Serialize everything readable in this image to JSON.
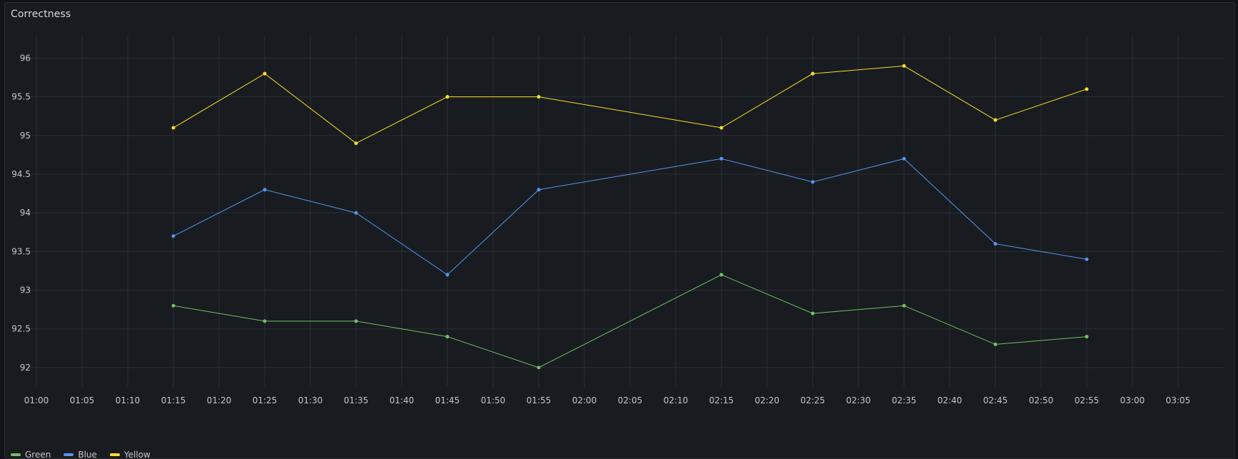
{
  "panel": {
    "title": "Correctness"
  },
  "colors": {
    "background": "#181b1f",
    "grid": "#2b2e33",
    "text": "#c7c7c7",
    "Green": "#73bf69",
    "Blue": "#5794f2",
    "Yellow": "#fade2a"
  },
  "chart_data": {
    "type": "line",
    "title": "Correctness",
    "x": [
      "01:15",
      "01:25",
      "01:35",
      "01:45",
      "01:55",
      "02:15",
      "02:25",
      "02:35",
      "02:45",
      "02:55"
    ],
    "x_ticks": [
      "01:00",
      "01:05",
      "01:10",
      "01:15",
      "01:20",
      "01:25",
      "01:30",
      "01:35",
      "01:40",
      "01:45",
      "01:50",
      "01:55",
      "02:00",
      "02:05",
      "02:10",
      "02:15",
      "02:20",
      "02:25",
      "02:30",
      "02:35",
      "02:40",
      "02:45",
      "02:50",
      "02:55",
      "03:00",
      "03:05"
    ],
    "y_ticks": [
      "92",
      "92.5",
      "93",
      "93.5",
      "94",
      "94.5",
      "95",
      "95.5",
      "96"
    ],
    "ylim": [
      91.75,
      96.3
    ],
    "grid": true,
    "legend": "bottom-left",
    "series": [
      {
        "name": "Green",
        "color": "#73bf69",
        "values": [
          92.8,
          92.6,
          92.6,
          92.4,
          92.0,
          93.2,
          92.7,
          92.8,
          92.3,
          92.4
        ]
      },
      {
        "name": "Blue",
        "color": "#5794f2",
        "values": [
          93.7,
          94.3,
          94.0,
          93.2,
          94.3,
          94.7,
          94.4,
          94.7,
          93.6,
          93.4
        ]
      },
      {
        "name": "Yellow",
        "color": "#fade2a",
        "values": [
          95.1,
          95.8,
          94.9,
          95.5,
          95.5,
          95.1,
          95.8,
          95.9,
          95.2,
          95.6
        ]
      }
    ]
  }
}
